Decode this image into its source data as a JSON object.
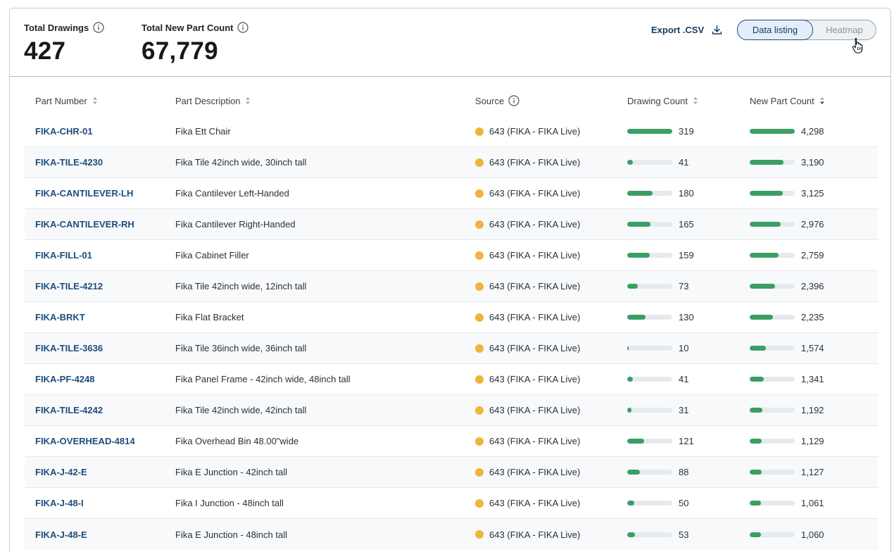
{
  "summary": {
    "total_drawings_label": "Total Drawings",
    "total_drawings_value": "427",
    "total_new_parts_label": "Total New Part Count",
    "total_new_parts_value": "67,779"
  },
  "toolbar": {
    "export_label": "Export .CSV",
    "view_data_listing": "Data listing",
    "view_heatmap": "Heatmap",
    "active_view": "Data listing"
  },
  "table": {
    "columns": [
      "Part Number",
      "Part Description",
      "Source",
      "Drawing Count",
      "New Part Count"
    ],
    "max_drawing_count": 319,
    "max_new_part_count": 4298,
    "rows": [
      {
        "part": "FIKA-CHR-01",
        "desc": "Fika Ett Chair",
        "source": "643 (FIKA - FIKA Live)",
        "drawings": 319,
        "drawings_label": "319",
        "new_parts": 4298,
        "new_parts_label": "4,298"
      },
      {
        "part": "FIKA-TILE-4230",
        "desc": "Fika Tile 42inch wide, 30inch tall",
        "source": "643 (FIKA - FIKA Live)",
        "drawings": 41,
        "drawings_label": "41",
        "new_parts": 3190,
        "new_parts_label": "3,190"
      },
      {
        "part": "FIKA-CANTILEVER-LH",
        "desc": "Fika Cantilever Left-Handed",
        "source": "643 (FIKA - FIKA Live)",
        "drawings": 180,
        "drawings_label": "180",
        "new_parts": 3125,
        "new_parts_label": "3,125"
      },
      {
        "part": "FIKA-CANTILEVER-RH",
        "desc": "Fika Cantilever Right-Handed",
        "source": "643 (FIKA - FIKA Live)",
        "drawings": 165,
        "drawings_label": "165",
        "new_parts": 2976,
        "new_parts_label": "2,976"
      },
      {
        "part": "FIKA-FILL-01",
        "desc": "Fika Cabinet Filler",
        "source": "643 (FIKA - FIKA Live)",
        "drawings": 159,
        "drawings_label": "159",
        "new_parts": 2759,
        "new_parts_label": "2,759"
      },
      {
        "part": "FIKA-TILE-4212",
        "desc": "Fika Tile 42inch wide, 12inch tall",
        "source": "643 (FIKA - FIKA Live)",
        "drawings": 73,
        "drawings_label": "73",
        "new_parts": 2396,
        "new_parts_label": "2,396"
      },
      {
        "part": "FIKA-BRKT",
        "desc": "Fika Flat Bracket",
        "source": "643 (FIKA - FIKA Live)",
        "drawings": 130,
        "drawings_label": "130",
        "new_parts": 2235,
        "new_parts_label": "2,235"
      },
      {
        "part": "FIKA-TILE-3636",
        "desc": "Fika Tile 36inch wide, 36inch tall",
        "source": "643 (FIKA - FIKA Live)",
        "drawings": 10,
        "drawings_label": "10",
        "new_parts": 1574,
        "new_parts_label": "1,574"
      },
      {
        "part": "FIKA-PF-4248",
        "desc": "Fika Panel Frame - 42inch wide, 48inch tall",
        "source": "643 (FIKA - FIKA Live)",
        "drawings": 41,
        "drawings_label": "41",
        "new_parts": 1341,
        "new_parts_label": "1,341"
      },
      {
        "part": "FIKA-TILE-4242",
        "desc": "Fika Tile 42inch wide, 42inch tall",
        "source": "643 (FIKA - FIKA Live)",
        "drawings": 31,
        "drawings_label": "31",
        "new_parts": 1192,
        "new_parts_label": "1,192"
      },
      {
        "part": "FIKA-OVERHEAD-4814",
        "desc": "Fika Overhead Bin 48.00\"wide",
        "source": "643 (FIKA - FIKA Live)",
        "drawings": 121,
        "drawings_label": "121",
        "new_parts": 1129,
        "new_parts_label": "1,129"
      },
      {
        "part": "FIKA-J-42-E",
        "desc": "Fika E Junction - 42inch tall",
        "source": "643 (FIKA - FIKA Live)",
        "drawings": 88,
        "drawings_label": "88",
        "new_parts": 1127,
        "new_parts_label": "1,127"
      },
      {
        "part": "FIKA-J-48-I",
        "desc": "Fika I Junction - 48inch tall",
        "source": "643 (FIKA - FIKA Live)",
        "drawings": 50,
        "drawings_label": "50",
        "new_parts": 1061,
        "new_parts_label": "1,061"
      },
      {
        "part": "FIKA-J-48-E",
        "desc": "Fika E Junction - 48inch tall",
        "source": "643 (FIKA - FIKA Live)",
        "drawings": 53,
        "drawings_label": "53",
        "new_parts": 1060,
        "new_parts_label": "1,060"
      }
    ]
  },
  "colors": {
    "bar_fill": "#3b9e63",
    "bar_track": "#e5eaee",
    "source_dot": "#f0b43c",
    "link": "#1f4d7a"
  }
}
